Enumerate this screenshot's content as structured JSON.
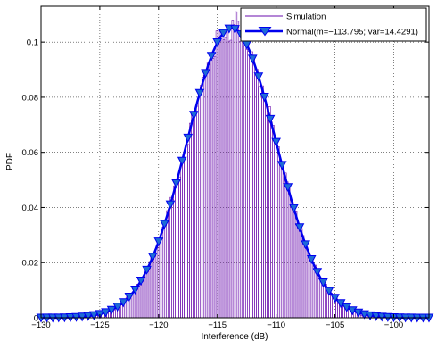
{
  "chart_data": {
    "type": "bar",
    "title": "",
    "xlabel": "Interference (dB)",
    "ylabel": "PDF",
    "xlim": [
      -130,
      -97
    ],
    "ylim": [
      0,
      0.113
    ],
    "x_ticks": [
      -130,
      -125,
      -120,
      -115,
      -110,
      -105,
      -100
    ],
    "y_ticks": [
      0,
      0.02,
      0.04,
      0.06,
      0.08,
      0.1
    ],
    "x_tick_labels": [
      "−130",
      "−125",
      "−120",
      "−115",
      "−110",
      "−105",
      "−100"
    ],
    "y_tick_labels": [
      "0",
      "0.02",
      "0.04",
      "0.06",
      "0.08",
      "0.1"
    ],
    "grid": true,
    "legend_position": "top-right",
    "series": [
      {
        "name": "Simulation",
        "kind": "histogram",
        "color": "#6a0dad",
        "bin_width": 0.15,
        "bin_range": [
          -126,
          -101
        ],
        "note_values": "peak approx 0.111 near -113.5, following the normal curve with noise"
      },
      {
        "name": "Normal(m=−113.795; var=14.4291)",
        "kind": "line-with-markers",
        "color": "#0000ee",
        "marker": "down-triangle",
        "mean": -113.795,
        "variance": 14.4291,
        "marker_spacing": 0.5
      }
    ]
  }
}
